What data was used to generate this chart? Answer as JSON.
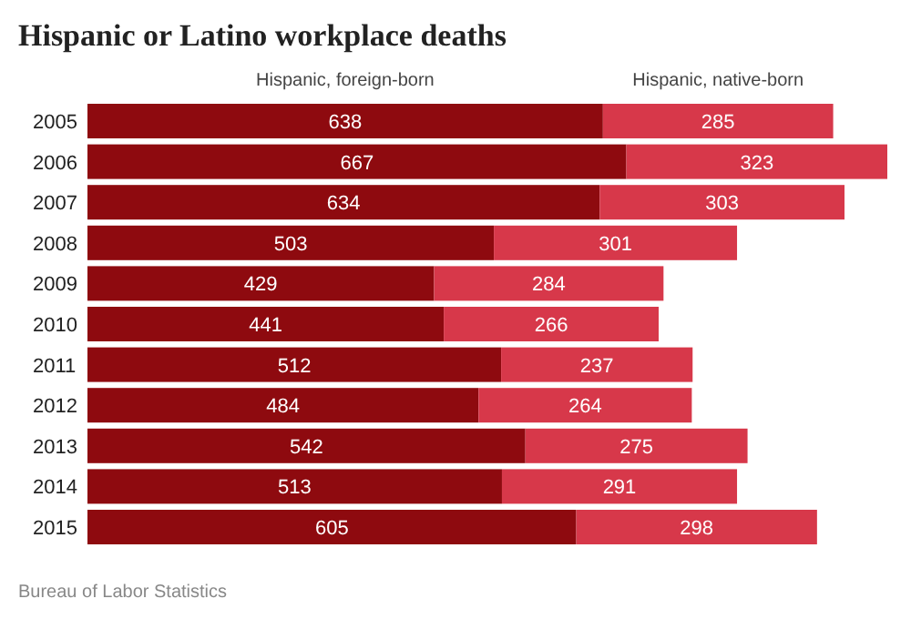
{
  "chart_data": {
    "type": "bar",
    "orientation": "horizontal",
    "stacked": true,
    "title": "Hispanic or Latino workplace deaths",
    "categories": [
      "2005",
      "2006",
      "2007",
      "2008",
      "2009",
      "2010",
      "2011",
      "2012",
      "2013",
      "2014",
      "2015"
    ],
    "series": [
      {
        "name": "Hispanic, foreign-born",
        "color": "#8e0a0f",
        "values": [
          638,
          667,
          634,
          503,
          429,
          441,
          512,
          484,
          542,
          513,
          605
        ]
      },
      {
        "name": "Hispanic, native-born",
        "color": "#d7384a",
        "values": [
          285,
          323,
          303,
          301,
          284,
          266,
          237,
          264,
          275,
          291,
          298
        ]
      }
    ],
    "data_labels": true,
    "legend": "top",
    "annotations": [
      "Bureau of Labor Statistics"
    ]
  }
}
